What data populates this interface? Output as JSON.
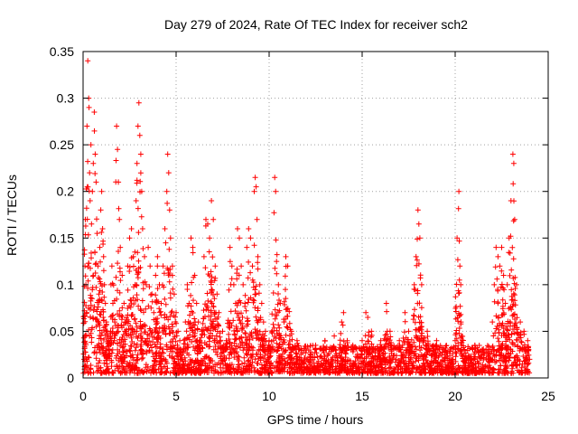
{
  "chart_data": {
    "type": "scatter",
    "title": "Day 279 of 2024, Rate Of TEC Index for receiver sch2",
    "xlabel": "GPS time / hours",
    "ylabel": "ROTI / TECUs",
    "xlim": [
      0,
      25
    ],
    "ylim": [
      0,
      0.35
    ],
    "xticks": [
      0,
      5,
      10,
      15,
      20,
      25
    ],
    "xtick_labels": [
      "0",
      "5",
      "10",
      "15",
      "20",
      "25"
    ],
    "yticks": [
      0,
      0.05,
      0.1,
      0.15,
      0.2,
      0.25,
      0.3,
      0.35
    ],
    "ytick_labels": [
      "0",
      "0.05",
      "0.1",
      "0.15",
      "0.2",
      "0.25",
      "0.3",
      "0.35"
    ],
    "grid": true,
    "marker": "+",
    "color": "#ff0000",
    "series": [
      {
        "name": "ROTI",
        "points": [
          [
            0.05,
            0.02
          ],
          [
            0.1,
            0.12
          ],
          [
            0.12,
            0.17
          ],
          [
            0.15,
            0.1
          ],
          [
            0.2,
            0.07
          ],
          [
            0.25,
            0.34
          ],
          [
            0.3,
            0.3
          ],
          [
            0.32,
            0.29
          ],
          [
            0.35,
            0.22
          ],
          [
            0.38,
            0.19
          ],
          [
            0.42,
            0.25
          ],
          [
            0.45,
            0.165
          ],
          [
            0.5,
            0.2
          ],
          [
            0.55,
            0.23
          ],
          [
            0.6,
            0.285
          ],
          [
            0.65,
            0.24
          ],
          [
            0.7,
            0.21
          ],
          [
            0.75,
            0.155
          ],
          [
            0.8,
            0.12
          ],
          [
            0.85,
            0.09
          ],
          [
            0.9,
            0.14
          ],
          [
            0.95,
            0.18
          ],
          [
            1.0,
            0.2
          ],
          [
            1.05,
            0.16
          ],
          [
            1.1,
            0.13
          ],
          [
            1.15,
            0.1
          ],
          [
            1.2,
            0.08
          ],
          [
            1.25,
            0.06
          ],
          [
            1.3,
            0.05
          ],
          [
            1.4,
            0.04
          ],
          [
            1.5,
            0.1
          ],
          [
            1.55,
            0.12
          ],
          [
            1.6,
            0.08
          ],
          [
            1.7,
            0.06
          ],
          [
            1.8,
            0.27
          ],
          [
            1.85,
            0.245
          ],
          [
            1.9,
            0.21
          ],
          [
            1.95,
            0.17
          ],
          [
            2.0,
            0.14
          ],
          [
            2.1,
            0.11
          ],
          [
            2.2,
            0.08
          ],
          [
            2.3,
            0.06
          ],
          [
            2.4,
            0.12
          ],
          [
            2.5,
            0.15
          ],
          [
            2.6,
            0.16
          ],
          [
            2.7,
            0.13
          ],
          [
            2.8,
            0.1
          ],
          [
            2.85,
            0.19
          ],
          [
            2.9,
            0.23
          ],
          [
            2.95,
            0.27
          ],
          [
            3.0,
            0.295
          ],
          [
            3.05,
            0.26
          ],
          [
            3.1,
            0.24
          ],
          [
            3.15,
            0.2
          ],
          [
            3.2,
            0.16
          ],
          [
            3.3,
            0.13
          ],
          [
            3.4,
            0.1
          ],
          [
            3.5,
            0.14
          ],
          [
            3.6,
            0.12
          ],
          [
            3.7,
            0.09
          ],
          [
            3.8,
            0.07
          ],
          [
            3.9,
            0.11
          ],
          [
            4.0,
            0.13
          ],
          [
            4.1,
            0.1
          ],
          [
            4.2,
            0.08
          ],
          [
            4.3,
            0.12
          ],
          [
            4.4,
            0.16
          ],
          [
            4.5,
            0.2
          ],
          [
            4.55,
            0.24
          ],
          [
            4.6,
            0.22
          ],
          [
            4.65,
            0.18
          ],
          [
            4.7,
            0.15
          ],
          [
            4.8,
            0.12
          ],
          [
            4.9,
            0.09
          ],
          [
            5.0,
            0.07
          ],
          [
            5.1,
            0.05
          ],
          [
            5.2,
            0.04
          ],
          [
            5.5,
            0.06
          ],
          [
            5.6,
            0.1
          ],
          [
            5.7,
            0.08
          ],
          [
            5.8,
            0.15
          ],
          [
            5.9,
            0.14
          ],
          [
            6.0,
            0.11
          ],
          [
            6.1,
            0.08
          ],
          [
            6.2,
            0.06
          ],
          [
            6.4,
            0.05
          ],
          [
            6.5,
            0.13
          ],
          [
            6.6,
            0.17
          ],
          [
            6.7,
            0.165
          ],
          [
            6.8,
            0.15
          ],
          [
            6.9,
            0.19
          ],
          [
            7.0,
            0.17
          ],
          [
            7.1,
            0.12
          ],
          [
            7.2,
            0.09
          ],
          [
            7.3,
            0.07
          ],
          [
            7.5,
            0.05
          ],
          [
            7.7,
            0.04
          ],
          [
            7.9,
            0.14
          ],
          [
            8.0,
            0.12
          ],
          [
            8.1,
            0.1
          ],
          [
            8.2,
            0.08
          ],
          [
            8.3,
            0.16
          ],
          [
            8.4,
            0.15
          ],
          [
            8.5,
            0.12
          ],
          [
            8.6,
            0.1
          ],
          [
            8.7,
            0.08
          ],
          [
            8.8,
            0.14
          ],
          [
            8.9,
            0.16
          ],
          [
            9.0,
            0.15
          ],
          [
            9.1,
            0.12
          ],
          [
            9.2,
            0.2
          ],
          [
            9.25,
            0.215
          ],
          [
            9.3,
            0.205
          ],
          [
            9.35,
            0.17
          ],
          [
            9.4,
            0.13
          ],
          [
            9.5,
            0.1
          ],
          [
            9.6,
            0.08
          ],
          [
            9.7,
            0.06
          ],
          [
            9.8,
            0.05
          ],
          [
            10.0,
            0.04
          ],
          [
            10.3,
            0.215
          ],
          [
            10.35,
            0.2
          ],
          [
            10.4,
            0.125
          ],
          [
            10.5,
            0.1
          ],
          [
            10.6,
            0.08
          ],
          [
            10.8,
            0.06
          ],
          [
            10.9,
            0.13
          ],
          [
            11.0,
            0.12
          ],
          [
            11.2,
            0.05
          ],
          [
            11.5,
            0.04
          ],
          [
            12.0,
            0.03
          ],
          [
            12.5,
            0.035
          ],
          [
            13.0,
            0.04
          ],
          [
            13.5,
            0.045
          ],
          [
            13.9,
            0.06
          ],
          [
            14.0,
            0.07
          ],
          [
            14.2,
            0.04
          ],
          [
            14.5,
            0.035
          ],
          [
            15.0,
            0.04
          ],
          [
            15.2,
            0.07
          ],
          [
            15.3,
            0.065
          ],
          [
            15.5,
            0.05
          ],
          [
            16.0,
            0.04
          ],
          [
            16.3,
            0.08
          ],
          [
            16.5,
            0.05
          ],
          [
            17.0,
            0.04
          ],
          [
            17.3,
            0.07
          ],
          [
            17.5,
            0.05
          ],
          [
            17.8,
            0.1
          ],
          [
            17.9,
            0.13
          ],
          [
            18.0,
            0.18
          ],
          [
            18.05,
            0.165
          ],
          [
            18.1,
            0.15
          ],
          [
            18.2,
            0.1
          ],
          [
            18.5,
            0.05
          ],
          [
            19.0,
            0.04
          ],
          [
            19.5,
            0.03
          ],
          [
            20.0,
            0.04
          ],
          [
            20.1,
            0.15
          ],
          [
            20.2,
            0.2
          ],
          [
            20.25,
            0.12
          ],
          [
            20.3,
            0.1
          ],
          [
            20.5,
            0.03
          ],
          [
            21.0,
            0.02
          ],
          [
            21.5,
            0.03
          ],
          [
            22.0,
            0.06
          ],
          [
            22.1,
            0.1
          ],
          [
            22.2,
            0.14
          ],
          [
            22.3,
            0.13
          ],
          [
            22.4,
            0.12
          ],
          [
            22.5,
            0.14
          ],
          [
            22.6,
            0.11
          ],
          [
            22.7,
            0.08
          ],
          [
            22.8,
            0.1
          ],
          [
            22.9,
            0.15
          ],
          [
            23.0,
            0.19
          ],
          [
            23.1,
            0.24
          ],
          [
            23.15,
            0.23
          ],
          [
            23.2,
            0.17
          ],
          [
            23.3,
            0.1
          ],
          [
            23.5,
            0.06
          ],
          [
            23.7,
            0.05
          ],
          [
            23.9,
            0.04
          ],
          [
            24.0,
            0.02
          ]
        ],
        "noise_floor_max": 0.03
      }
    ]
  }
}
